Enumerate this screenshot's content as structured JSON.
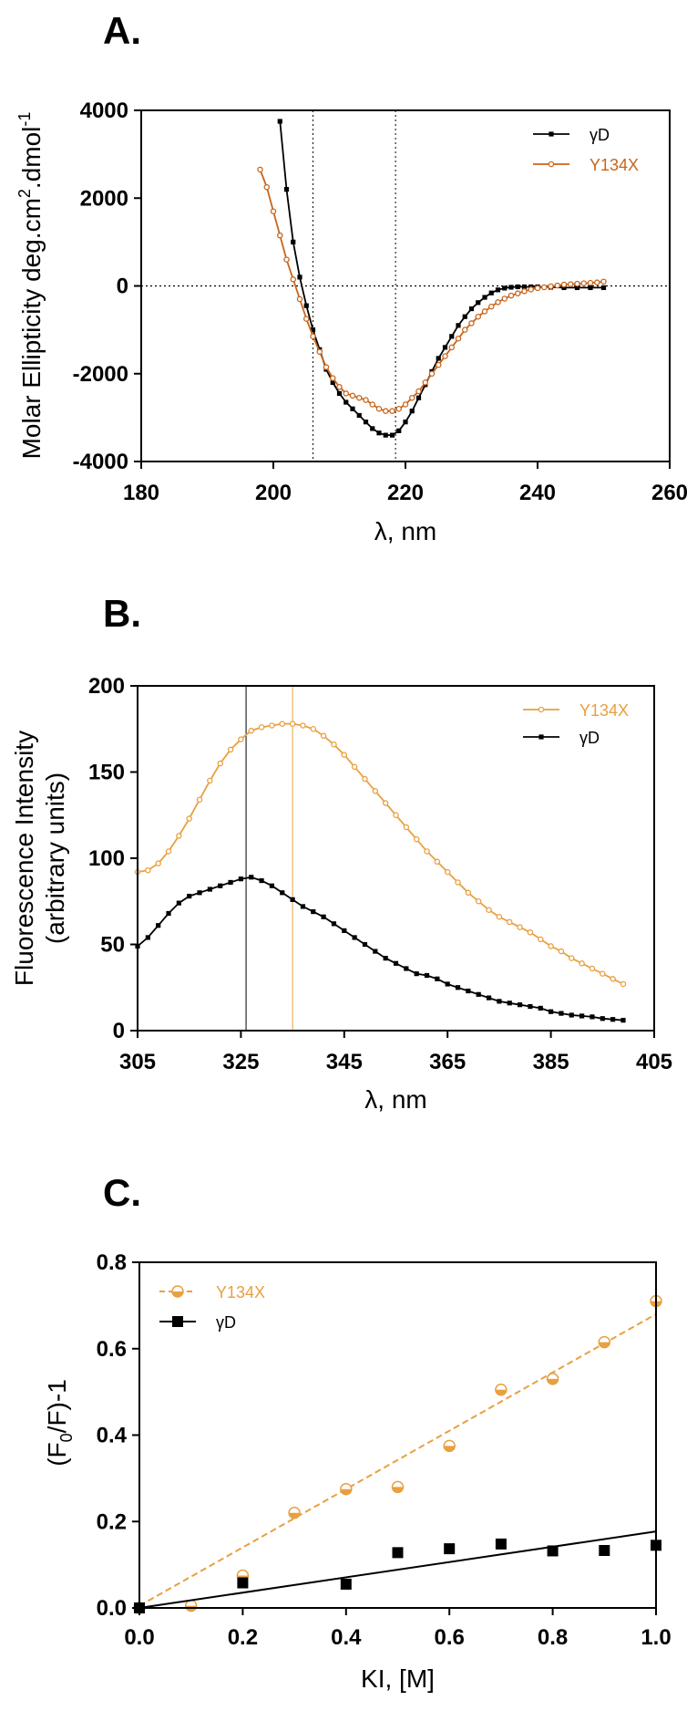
{
  "chart_data": [
    {
      "panel": "A.",
      "type": "line",
      "xlabel": "λ, nm",
      "ylabel": "Molar Ellipticity deg.cm",
      "ylabel_sup": "2",
      "ylabel_mid": ".dmol",
      "ylabel_sup2": "-1",
      "xlim": [
        180,
        260
      ],
      "ylim": [
        -4000,
        4000
      ],
      "xticks": [
        180,
        200,
        220,
        240,
        260
      ],
      "yticks": [
        -4000,
        -2000,
        0,
        2000,
        4000
      ],
      "ref_vlines": [
        206,
        218.5
      ],
      "ref_hline": 0,
      "legend_position": "top-right",
      "series": [
        {
          "name": "γD",
          "color": "#000000",
          "marker": "filled-square",
          "x": [
            201,
            202,
            203,
            204,
            205,
            206,
            207,
            208,
            209,
            210,
            211,
            212,
            213,
            214,
            215,
            216,
            217,
            218,
            219,
            220,
            221,
            222,
            223,
            224,
            225,
            226,
            227,
            228,
            229,
            230,
            231,
            232,
            233,
            234,
            235,
            236,
            237,
            238,
            239,
            240,
            242,
            244,
            246,
            248,
            250
          ],
          "y": [
            3750,
            2200,
            1000,
            200,
            -450,
            -1000,
            -1450,
            -1900,
            -2200,
            -2450,
            -2650,
            -2800,
            -2950,
            -3100,
            -3250,
            -3350,
            -3400,
            -3400,
            -3300,
            -3100,
            -2850,
            -2550,
            -2250,
            -1950,
            -1650,
            -1400,
            -1150,
            -900,
            -700,
            -520,
            -380,
            -260,
            -160,
            -90,
            -50,
            -30,
            -20,
            -20,
            -20,
            -20,
            -30,
            -40,
            -40,
            -40,
            -40
          ]
        },
        {
          "name": "Y134X",
          "color": "#C8651B",
          "marker": "open-circle",
          "x": [
            198,
            199,
            200,
            201,
            202,
            203,
            204,
            205,
            206,
            207,
            208,
            209,
            210,
            211,
            212,
            213,
            214,
            215,
            216,
            217,
            218,
            219,
            220,
            221,
            222,
            223,
            224,
            225,
            226,
            227,
            228,
            229,
            230,
            231,
            232,
            233,
            234,
            235,
            236,
            237,
            238,
            239,
            240,
            241,
            242,
            243,
            244,
            245,
            246,
            247,
            248,
            249,
            250
          ],
          "y": [
            2650,
            2250,
            1700,
            1150,
            600,
            150,
            -300,
            -750,
            -1150,
            -1500,
            -1850,
            -2100,
            -2300,
            -2450,
            -2500,
            -2550,
            -2600,
            -2700,
            -2800,
            -2850,
            -2850,
            -2800,
            -2700,
            -2550,
            -2400,
            -2200,
            -2000,
            -1800,
            -1600,
            -1400,
            -1200,
            -1000,
            -850,
            -700,
            -580,
            -470,
            -370,
            -290,
            -220,
            -170,
            -120,
            -80,
            -50,
            -30,
            -10,
            10,
            30,
            40,
            50,
            60,
            70,
            80,
            100
          ]
        }
      ]
    },
    {
      "panel": "B.",
      "type": "line",
      "xlabel": "λ, nm",
      "ylabel": "Fluorescence Intensity",
      "ylabel2": "(arbitrary units)",
      "xlim": [
        305,
        405
      ],
      "ylim": [
        0,
        200
      ],
      "xticks": [
        305,
        325,
        345,
        365,
        385,
        405
      ],
      "yticks": [
        0,
        50,
        100,
        150,
        200
      ],
      "ref_vlines": [
        {
          "x": 326,
          "color": "#000000"
        },
        {
          "x": 335,
          "color": "#E8A040"
        }
      ],
      "legend_position": "top-right",
      "series": [
        {
          "name": "Y134X",
          "color": "#E8A040",
          "marker": "open-circle",
          "x": [
            305,
            307,
            309,
            311,
            313,
            315,
            317,
            319,
            321,
            323,
            325,
            327,
            329,
            331,
            333,
            335,
            337,
            339,
            341,
            343,
            345,
            347,
            349,
            351,
            353,
            355,
            357,
            359,
            361,
            363,
            365,
            367,
            369,
            371,
            373,
            375,
            377,
            379,
            381,
            383,
            385,
            387,
            389,
            391,
            393,
            395,
            397,
            399
          ],
          "y": [
            92,
            93,
            97,
            104,
            113,
            123,
            134,
            145,
            155,
            163,
            169,
            174,
            176,
            177,
            178,
            178,
            177,
            175,
            171,
            166,
            160,
            153,
            146,
            139,
            132,
            125,
            118,
            111,
            104,
            98,
            92,
            86,
            80,
            75,
            70,
            66,
            63,
            60,
            57,
            53,
            49,
            46,
            42,
            39,
            36,
            33,
            30,
            27
          ]
        },
        {
          "name": "γD",
          "color": "#000000",
          "marker": "filled-square",
          "x": [
            305,
            307,
            309,
            311,
            313,
            315,
            317,
            319,
            321,
            323,
            325,
            327,
            329,
            331,
            333,
            335,
            337,
            339,
            341,
            343,
            345,
            347,
            349,
            351,
            353,
            355,
            357,
            359,
            361,
            363,
            365,
            367,
            369,
            371,
            373,
            375,
            377,
            379,
            381,
            383,
            385,
            387,
            389,
            391,
            393,
            395,
            397,
            399
          ],
          "y": [
            49,
            54,
            61,
            68,
            74,
            78,
            80,
            82,
            84,
            86,
            88,
            89,
            87,
            84,
            80,
            76,
            72,
            69,
            66,
            62,
            58,
            54,
            50,
            46,
            42,
            39,
            36,
            33,
            32,
            30,
            27,
            25,
            23,
            21,
            19,
            17,
            16,
            15,
            14,
            13,
            11,
            10,
            9,
            8.5,
            8,
            7,
            6.5,
            6
          ]
        }
      ]
    },
    {
      "panel": "C.",
      "type": "scatter",
      "xlabel": "KI, [M]",
      "ylabel": "(F",
      "ylabel_sub": "0",
      "ylabel_end": "/F)-1",
      "xlim": [
        0,
        1.0
      ],
      "ylim": [
        0,
        0.8
      ],
      "xticks": [
        "0.0",
        "0.2",
        "0.4",
        "0.6",
        "0.8",
        "1.0"
      ],
      "yticks": [
        "0.0",
        "0.2",
        "0.4",
        "0.6",
        "0.8"
      ],
      "ref_hline": 0,
      "legend_position": "top-left",
      "series": [
        {
          "name": "Y134X",
          "color": "#E8A040",
          "marker": "half-circle",
          "fit": "dashed",
          "fit_line": [
            [
              0,
              0.005
            ],
            [
              1.0,
              0.68
            ]
          ],
          "x": [
            0,
            0.1,
            0.2,
            0.3,
            0.4,
            0.5,
            0.6,
            0.7,
            0.8,
            0.9,
            1.0
          ],
          "y": [
            0,
            0.005,
            0.075,
            0.22,
            0.275,
            0.28,
            0.375,
            0.505,
            0.53,
            0.615,
            0.71
          ]
        },
        {
          "name": "γD",
          "color": "#000000",
          "marker": "filled-square",
          "fit": "solid",
          "fit_line": [
            [
              0,
              0.0
            ],
            [
              1.0,
              0.177
            ]
          ],
          "x": [
            0,
            0.2,
            0.4,
            0.5,
            0.6,
            0.7,
            0.8,
            0.9,
            1.0
          ],
          "y": [
            0,
            0.058,
            0.055,
            0.128,
            0.137,
            0.148,
            0.132,
            0.133,
            0.145
          ]
        }
      ]
    }
  ]
}
